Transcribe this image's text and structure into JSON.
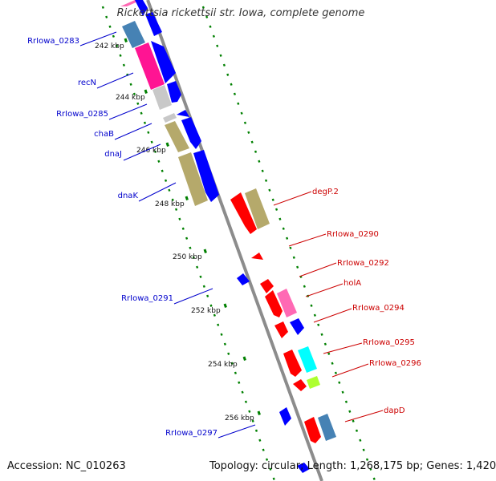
{
  "title": "Rickettsia rickettsii str. Iowa, complete genome",
  "footer": {
    "accession": "Accession: NC_010263",
    "topology": "Topology: circular",
    "length": "Length: 1,268,175 bp",
    "genes": "Genes: 1,420",
    "sep": "; "
  },
  "colors": {
    "backbone": "#8c8c8c",
    "tick": "#008000",
    "forward_label": "#0000cc",
    "reverse_label": "#cc0000",
    "scale_text": "#111111"
  },
  "scale": [
    {
      "label": "242 kbp"
    },
    {
      "label": "244 kbp"
    },
    {
      "label": "246 kbp"
    },
    {
      "label": "248 kbp"
    },
    {
      "label": "250 kbp"
    },
    {
      "label": "252 kbp"
    },
    {
      "label": "254 kbp"
    },
    {
      "label": "256 kbp"
    }
  ],
  "genes_forward": [
    {
      "label": "RrIowa_0283"
    },
    {
      "label": "recN"
    },
    {
      "label": "RrIowa_0285"
    },
    {
      "label": "chaB"
    },
    {
      "label": "dnaJ"
    },
    {
      "label": "dnaK"
    },
    {
      "label": "RrIowa_0291"
    },
    {
      "label": "RrIowa_0297"
    }
  ],
  "genes_reverse": [
    {
      "label": "degP.2"
    },
    {
      "label": "RrIowa_0290"
    },
    {
      "label": "RrIowa_0292"
    },
    {
      "label": "holA"
    },
    {
      "label": "RrIowa_0294"
    },
    {
      "label": "RrIowa_0295"
    },
    {
      "label": "RrIowa_0296"
    },
    {
      "label": "dapD"
    }
  ]
}
